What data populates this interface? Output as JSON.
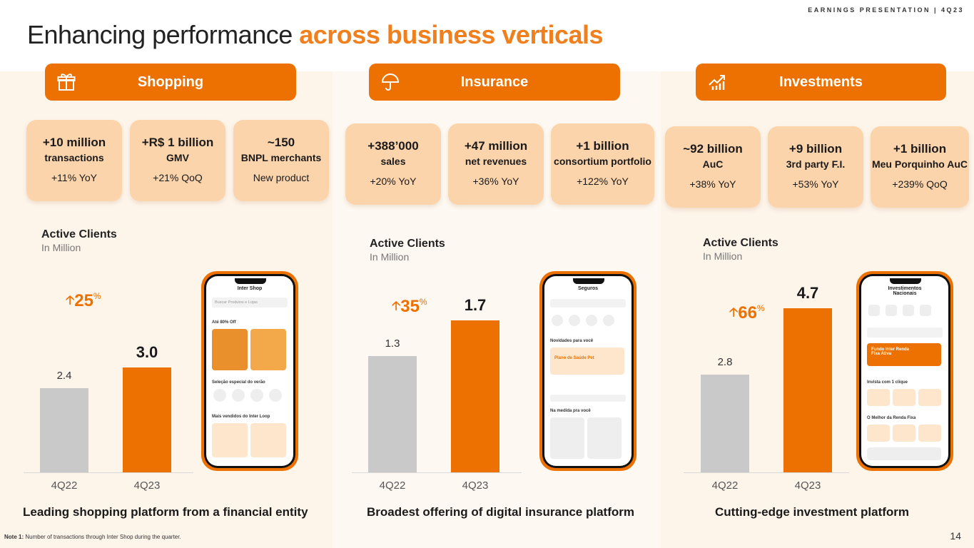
{
  "header": {
    "tag": "EARNINGS PRESENTATION | 4Q23",
    "title_plain": "Enhancing performance ",
    "title_highlight": "across business verticals"
  },
  "colors": {
    "accent": "#ec7100",
    "kpi_bg": "#fcd4ab",
    "bar_prev": "#c9c9c9"
  },
  "verticals": [
    {
      "name": "Shopping",
      "icon": "gift-icon",
      "kpis": [
        {
          "value": "+10 million",
          "label": "transactions",
          "change": "+11% YoY"
        },
        {
          "value": "+R$ 1 billion",
          "label": "GMV",
          "change": "+21% QoQ"
        },
        {
          "value": "~150",
          "label": "BNPL merchants",
          "change": "New product"
        }
      ],
      "chart_title": "Active Clients",
      "chart_subtitle": "In Million",
      "growth": "25",
      "growth_unit": "%",
      "caption": "Leading shopping platform from  a financial entity",
      "phone": {
        "screen_title": "Inter Shop",
        "search": "Buscar Produtos e Lojas",
        "promo": "Até 80% Off",
        "section1": "Seleção especial do verão",
        "section2": "Mais vendidos do Inter Loop"
      }
    },
    {
      "name": "Insurance",
      "icon": "umbrella-icon",
      "kpis": [
        {
          "value": "+388’000",
          "label": "sales",
          "change": "+20% YoY"
        },
        {
          "value": "+47 million",
          "label": "net revenues",
          "change": "+36% YoY"
        },
        {
          "value": "+1 billion",
          "label": "consortium portfolio",
          "change": "+122% YoY"
        }
      ],
      "chart_title": "Active Clients",
      "chart_subtitle": "In Million",
      "growth": "35",
      "growth_unit": "%",
      "caption": "Broadest offering of digital insurance platform",
      "phone": {
        "screen_title": "Seguros",
        "promo": "Novidades para você",
        "section1": "Plano de Saúde Pet",
        "section2": "Na medida pra você"
      }
    },
    {
      "name": "Investments",
      "icon": "growth-chart-icon",
      "kpis": [
        {
          "value": "~92 billion",
          "label": "AuC",
          "change": "+38% YoY"
        },
        {
          "value": "+9 billion",
          "label": "3rd party F.I.",
          "change": "+53% YoY"
        },
        {
          "value": "+1 billion",
          "label": "Meu Porquinho AuC",
          "change": "+239% QoQ"
        }
      ],
      "chart_title": "Active Clients",
      "chart_subtitle": "In Million",
      "growth": "66",
      "growth_unit": "%",
      "caption": "Cutting-edge investment platform",
      "phone": {
        "screen_title": "Investimentos Nacionais",
        "promo": "Fundo Inter Renda Fixa Ativa",
        "section1": "Invista com 1 clique",
        "section2": "O Melhor da Renda Fixa"
      }
    }
  ],
  "chart_data": [
    {
      "type": "bar",
      "title": "Active Clients",
      "subtitle": "In Million",
      "categories": [
        "4Q22",
        "4Q23"
      ],
      "values": [
        2.4,
        3.0
      ],
      "labels": [
        "2.4",
        "3.0"
      ]
    },
    {
      "type": "bar",
      "title": "Active Clients",
      "subtitle": "In Million",
      "categories": [
        "4Q22",
        "4Q23"
      ],
      "values": [
        1.3,
        1.7
      ],
      "labels": [
        "1.3",
        "1.7"
      ]
    },
    {
      "type": "bar",
      "title": "Active Clients",
      "subtitle": "In Million",
      "categories": [
        "4Q22",
        "4Q23"
      ],
      "values": [
        2.8,
        4.7
      ],
      "labels": [
        "2.8",
        "4.7"
      ]
    }
  ],
  "footer": {
    "note_label": "Note 1:",
    "note_text": " Number of transactions through Inter Shop during the quarter.",
    "page": "14"
  }
}
